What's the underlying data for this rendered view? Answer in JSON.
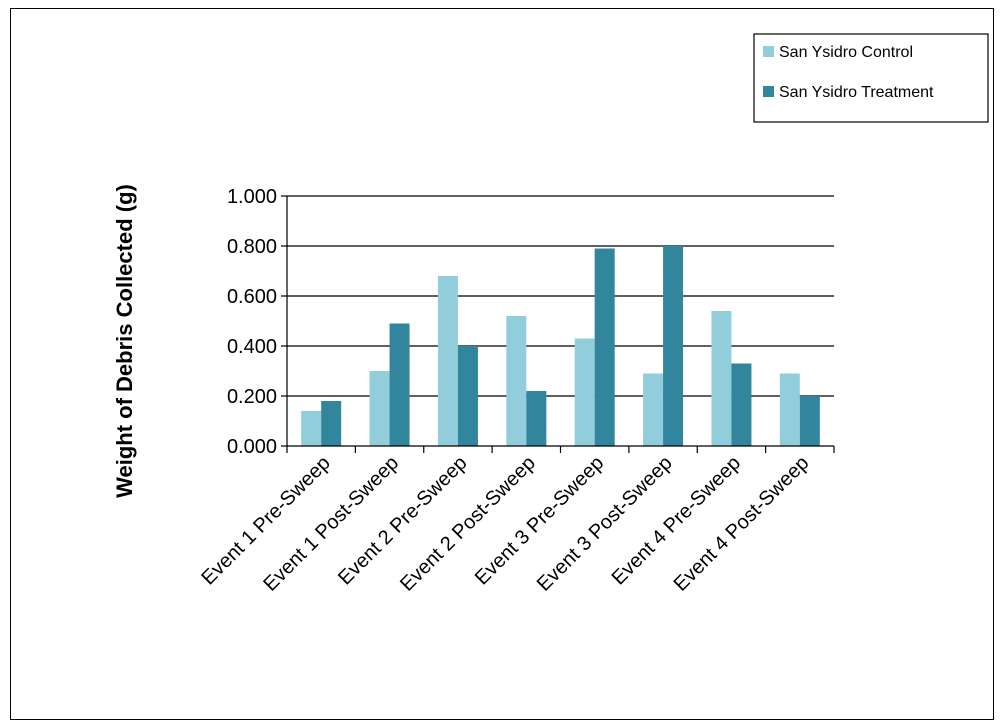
{
  "chart_data": {
    "type": "bar",
    "title": "",
    "xlabel": "",
    "ylabel": "Weight of Debris Collected (g)",
    "ylim": [
      0,
      1
    ],
    "yticks": [
      0,
      0.2,
      0.4,
      0.6,
      0.8,
      1.0
    ],
    "ytick_labels": [
      "0.000",
      "0.200",
      "0.400",
      "0.600",
      "0.800",
      "1.000"
    ],
    "grid": "horizontal",
    "legend_position": "top-right",
    "categories": [
      "Event 1 Pre-Sweep",
      "Event 1 Post-Sweep",
      "Event 2 Pre-Sweep",
      "Event 2 Post-Sweep",
      "Event 3 Pre-Sweep",
      "Event 3 Post-Sweep",
      "Event 4 Pre-Sweep",
      "Event 4 Post-Sweep"
    ],
    "series": [
      {
        "name": "San Ysidro Control",
        "color": "#92CDDC",
        "values": [
          0.14,
          0.3,
          0.68,
          0.52,
          0.43,
          0.29,
          0.54,
          0.29
        ]
      },
      {
        "name": "San Ysidro Treatment",
        "color": "#31859C",
        "values": [
          0.18,
          0.49,
          0.4,
          0.22,
          0.79,
          0.8,
          0.33,
          0.2
        ]
      }
    ]
  }
}
